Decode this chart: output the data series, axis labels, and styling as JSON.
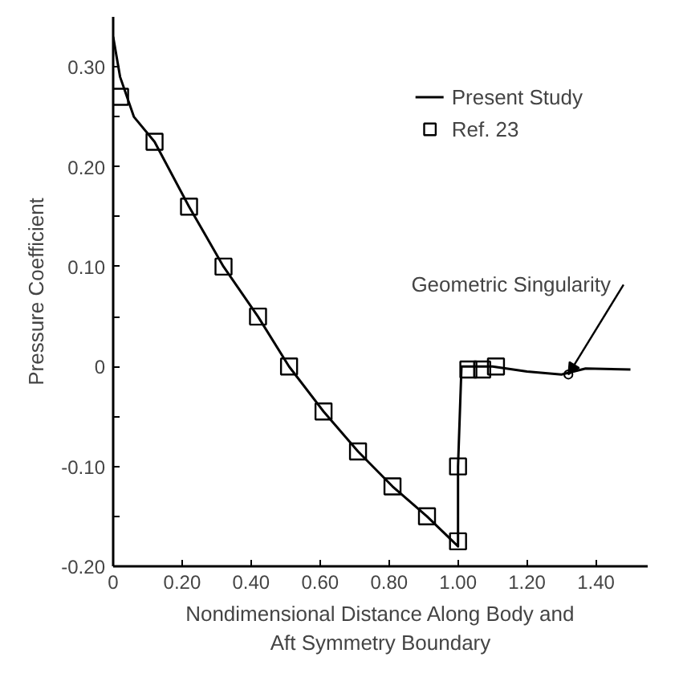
{
  "chart_data": {
    "type": "line",
    "xlabel": "Nondimensional Distance Along Body and\nAft Symmetry Boundary",
    "ylabel": "Pressure Coefficient",
    "xlim": [
      0,
      1.55
    ],
    "ylim": [
      -0.2,
      0.35
    ],
    "xticks": [
      {
        "value": 0,
        "label": "0"
      },
      {
        "value": 0.2,
        "label": "0.20"
      },
      {
        "value": 0.4,
        "label": "0.40"
      },
      {
        "value": 0.6,
        "label": "0.60"
      },
      {
        "value": 0.8,
        "label": "0.80"
      },
      {
        "value": 1.0,
        "label": "1.00"
      },
      {
        "value": 1.2,
        "label": "1.20"
      },
      {
        "value": 1.4,
        "label": "1.40"
      }
    ],
    "yticks": [
      {
        "value": -0.2,
        "label": "-0.20"
      },
      {
        "value": -0.15,
        "label": null
      },
      {
        "value": -0.1,
        "label": "-0.10"
      },
      {
        "value": -0.05,
        "label": null
      },
      {
        "value": 0,
        "label": "0"
      },
      {
        "value": 0.05,
        "label": null
      },
      {
        "value": 0.1,
        "label": "0.10"
      },
      {
        "value": 0.15,
        "label": null
      },
      {
        "value": 0.2,
        "label": "0.20"
      },
      {
        "value": 0.25,
        "label": null
      },
      {
        "value": 0.3,
        "label": "0.30"
      }
    ],
    "grid": false,
    "legend": "top right",
    "series": [
      {
        "name": "Present Study",
        "color": "#000000",
        "marker": "none",
        "line_style": "solid",
        "x": [
          0,
          0.02,
          0.06,
          0.12,
          0.22,
          0.32,
          0.42,
          0.51,
          0.61,
          0.71,
          0.81,
          0.91,
          1.0,
          1.0,
          1.01,
          1.1,
          1.2,
          1.3,
          1.37,
          1.5
        ],
        "values": [
          0.33,
          0.29,
          0.25,
          0.225,
          0.16,
          0.1,
          0.05,
          0.0,
          -0.045,
          -0.085,
          -0.12,
          -0.15,
          -0.18,
          -0.1,
          0.0,
          0.0,
          -0.005,
          -0.008,
          -0.002,
          -0.003
        ]
      },
      {
        "name": "Ref. 23",
        "type": "scatter",
        "color": "#000000",
        "marker": "square",
        "x": [
          0.02,
          0.12,
          0.22,
          0.32,
          0.42,
          0.51,
          0.61,
          0.71,
          0.81,
          0.91,
          1.0,
          1.0,
          1.03,
          1.07,
          1.11
        ],
        "values": [
          0.27,
          0.225,
          0.16,
          0.1,
          0.05,
          0.0,
          -0.045,
          -0.085,
          -0.12,
          -0.15,
          -0.175,
          -0.1,
          -0.003,
          -0.003,
          0.0
        ]
      }
    ],
    "annotations": [
      {
        "text": "Geometric Singularity",
        "x": 1.32,
        "y": -0.008
      }
    ]
  }
}
